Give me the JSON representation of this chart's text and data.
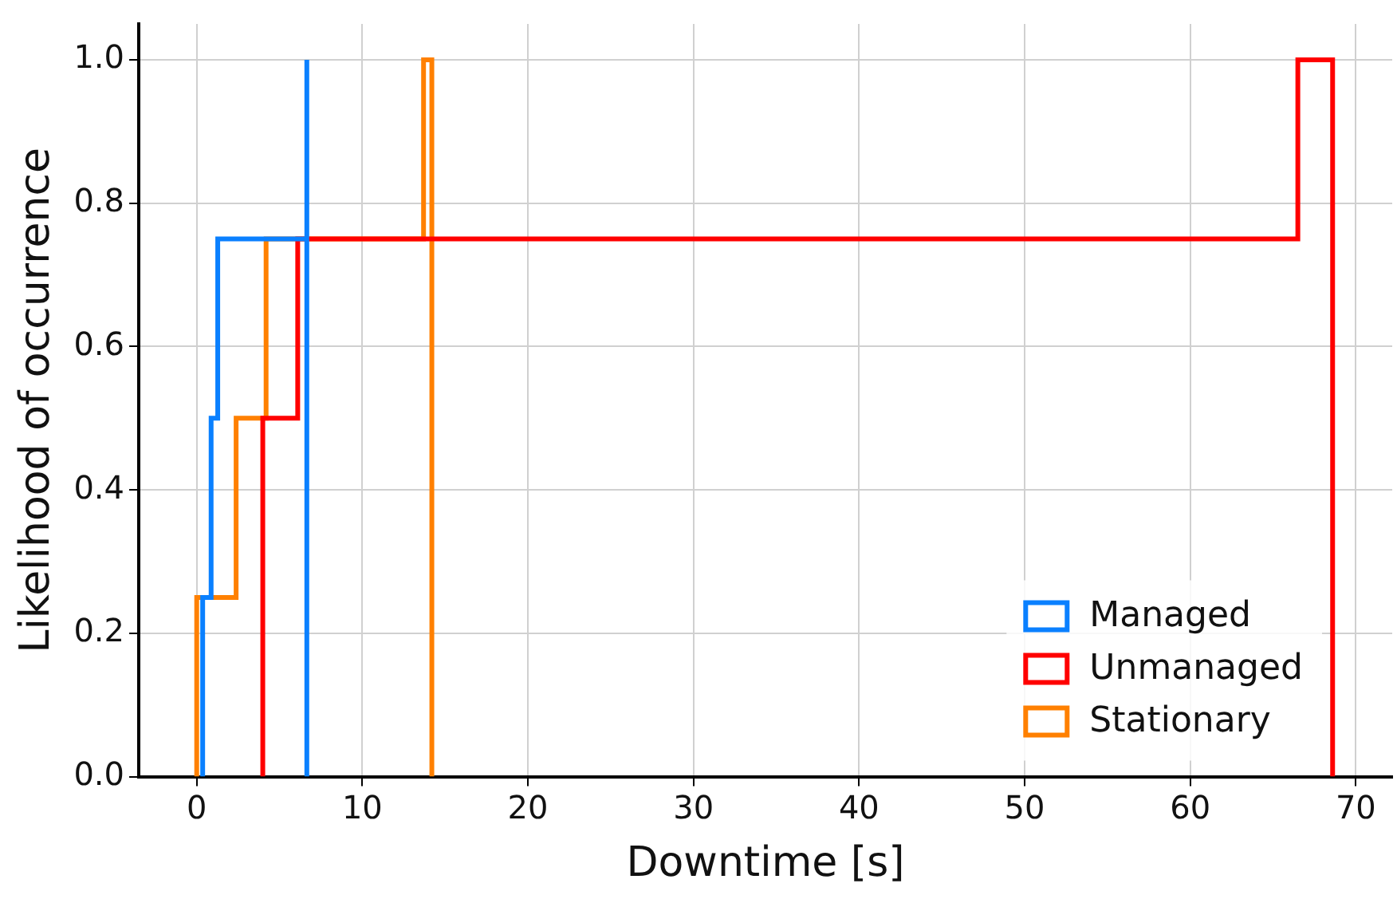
{
  "chart_data": {
    "type": "step",
    "xlabel": "Downtime [s]",
    "ylabel": "Likelihood of occurrence",
    "xlim": [
      -3.5,
      72.2
    ],
    "xticks": [
      0,
      10,
      20,
      30,
      40,
      50,
      60,
      70
    ],
    "ylim": [
      0,
      1.05
    ],
    "yticks": [
      {
        "value": 0,
        "label": "0.0"
      },
      0.2,
      0.4,
      0.6,
      0.8,
      {
        "value": 1,
        "label": "1.0"
      }
    ],
    "grid": true,
    "legend": "bottom right",
    "line_style": "solid",
    "marker": "none",
    "series": [
      {
        "name": "Managed",
        "color": "#0a80ff",
        "x": [
          0.36,
          0.36,
          0.87,
          1.27,
          6.65,
          6.65
        ],
        "values": [
          0,
          0.25,
          0.5,
          0.75,
          1.0,
          0
        ]
      },
      {
        "name": "Unmanaged",
        "color": "#ff0000",
        "x": [
          3.99,
          3.99,
          6.1,
          66.5,
          68.6
        ],
        "values": [
          0,
          0.5,
          0.75,
          1.0,
          0
        ]
      },
      {
        "name": "Stationary",
        "color": "#ff8000",
        "x": [
          0.0,
          0.0,
          2.38,
          4.19,
          13.7,
          14.2
        ],
        "values": [
          0,
          0.25,
          0.5,
          0.75,
          1.0,
          0
        ]
      }
    ]
  }
}
